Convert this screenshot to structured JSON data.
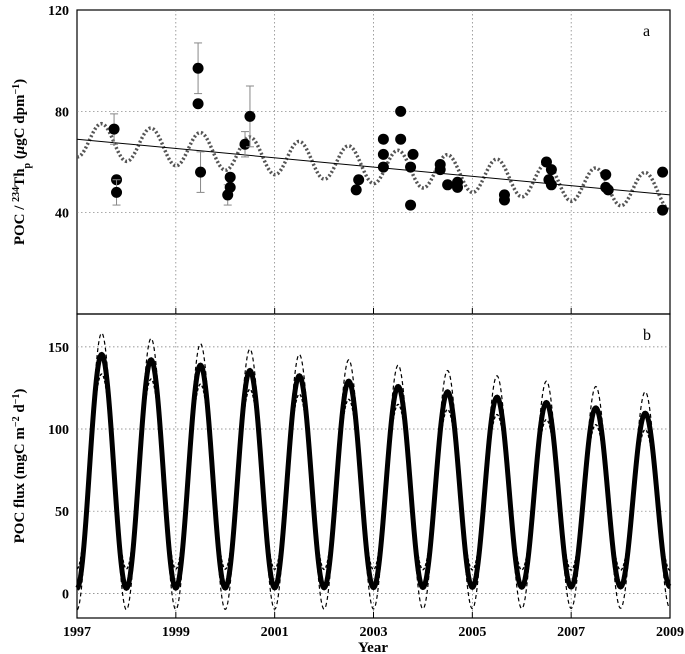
{
  "chart_data": [
    {
      "panel_label": "a",
      "type": "scatter",
      "xlabel": "Year",
      "ylabel_parts": [
        "POC / ",
        "234",
        "Th",
        "p",
        " (",
        "μ",
        "gC dpm",
        "−1",
        ")"
      ],
      "xlim": [
        1997,
        2009
      ],
      "ylim": [
        0,
        120
      ],
      "yticks": [
        40,
        80,
        120
      ],
      "grid": true,
      "points": [
        {
          "x": 1997.75,
          "y": 73,
          "err": 6
        },
        {
          "x": 1997.8,
          "y": 53
        },
        {
          "x": 1997.8,
          "y": 48,
          "err": 5
        },
        {
          "x": 1999.45,
          "y": 97,
          "err": 10
        },
        {
          "x": 1999.45,
          "y": 83
        },
        {
          "x": 1999.5,
          "y": 56,
          "err": 8
        },
        {
          "x": 2000.05,
          "y": 47,
          "err": 4
        },
        {
          "x": 2000.1,
          "y": 50
        },
        {
          "x": 2000.1,
          "y": 54
        },
        {
          "x": 2000.4,
          "y": 67,
          "err": 5
        },
        {
          "x": 2000.5,
          "y": 78,
          "err": 12
        },
        {
          "x": 2002.65,
          "y": 49
        },
        {
          "x": 2002.7,
          "y": 53
        },
        {
          "x": 2003.2,
          "y": 69
        },
        {
          "x": 2003.2,
          "y": 63
        },
        {
          "x": 2003.2,
          "y": 58
        },
        {
          "x": 2003.55,
          "y": 80
        },
        {
          "x": 2003.55,
          "y": 69
        },
        {
          "x": 2003.8,
          "y": 63
        },
        {
          "x": 2003.75,
          "y": 58
        },
        {
          "x": 2003.75,
          "y": 43
        },
        {
          "x": 2004.35,
          "y": 59
        },
        {
          "x": 2004.35,
          "y": 57
        },
        {
          "x": 2004.5,
          "y": 51
        },
        {
          "x": 2004.7,
          "y": 52
        },
        {
          "x": 2004.7,
          "y": 50
        },
        {
          "x": 2005.65,
          "y": 47
        },
        {
          "x": 2005.65,
          "y": 45
        },
        {
          "x": 2006.5,
          "y": 60
        },
        {
          "x": 2006.6,
          "y": 57
        },
        {
          "x": 2006.55,
          "y": 53
        },
        {
          "x": 2006.6,
          "y": 51
        },
        {
          "x": 2007.7,
          "y": 55
        },
        {
          "x": 2007.7,
          "y": 50
        },
        {
          "x": 2007.75,
          "y": 49
        },
        {
          "x": 2008.85,
          "y": 56
        },
        {
          "x": 2008.85,
          "y": 41
        }
      ],
      "trend_line": {
        "x": [
          1997,
          2009
        ],
        "y": [
          69,
          47
        ]
      },
      "seasonal_curve": {
        "mean_start": 69,
        "mean_end": 48,
        "amplitude": 7,
        "period_years": 1,
        "peak_year_fraction": 0.5,
        "style": "dotted"
      }
    },
    {
      "panel_label": "b",
      "type": "line",
      "xlabel": "Year",
      "ylabel_parts": [
        "POC flux (mgC m",
        "−2",
        " d",
        "−1",
        ")"
      ],
      "xlim": [
        1997,
        2009
      ],
      "ylim": [
        -15,
        170
      ],
      "yticks": [
        0,
        50,
        100,
        150
      ],
      "xticks": [
        1997,
        1999,
        2001,
        2003,
        2005,
        2007,
        2009
      ],
      "grid": true,
      "series": [
        {
          "name": "",
          "style": "solid-thick",
          "mean_start": 75,
          "mean_end": 56,
          "amplitude_start": 72,
          "amplitude_end": 52,
          "peak_year_fraction": 0.5,
          "period_years": 1
        },
        {
          "name": "",
          "style": "dashed-upper",
          "mean_start": 75,
          "mean_end": 56,
          "amplitude_start": 85,
          "amplitude_end": 65,
          "peak_year_fraction": 0.5,
          "period_years": 1
        },
        {
          "name": "",
          "style": "dashed-lower",
          "mean_start": 75,
          "mean_end": 56,
          "amplitude_start": 60,
          "amplitude_end": 42,
          "peak_year_fraction": 0.5,
          "period_years": 1
        }
      ]
    }
  ]
}
